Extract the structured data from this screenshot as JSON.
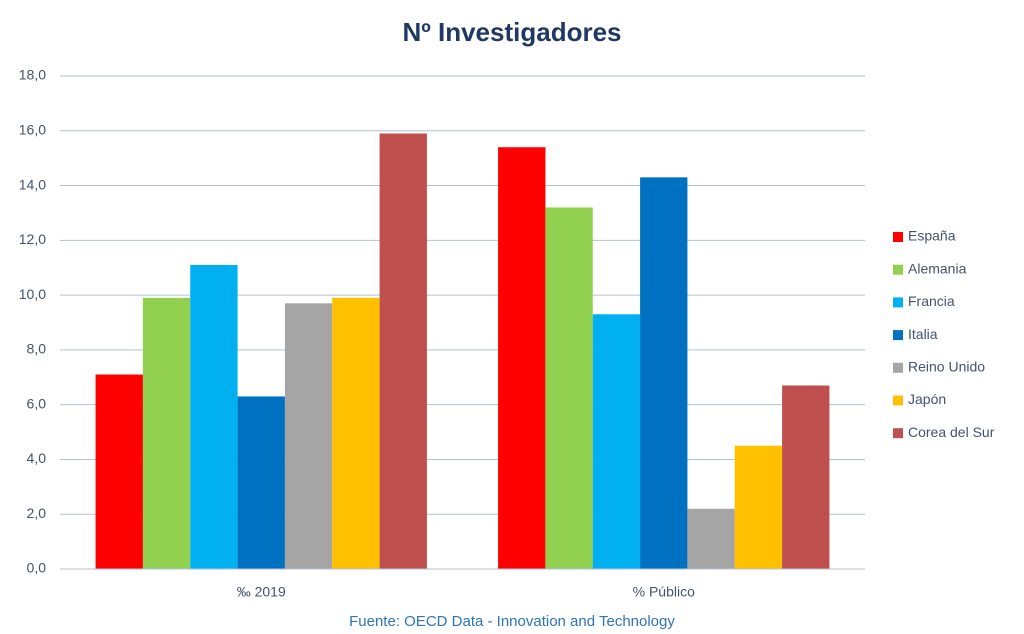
{
  "chart_data": {
    "type": "bar",
    "title": "Nº Investigadores",
    "source": "Fuente: OECD Data - Innovation and Technology",
    "categories": [
      "‰ 2019",
      "% Público"
    ],
    "series": [
      {
        "name": "España",
        "color": "#ff0000",
        "values": [
          7.1,
          15.4
        ]
      },
      {
        "name": "Alemania",
        "color": "#92d050",
        "values": [
          9.9,
          13.2
        ]
      },
      {
        "name": "Francia",
        "color": "#00b0f0",
        "values": [
          11.1,
          9.3
        ]
      },
      {
        "name": "Italia",
        "color": "#0070c0",
        "values": [
          6.3,
          14.3
        ]
      },
      {
        "name": "Reino Unido",
        "color": "#a5a5a5",
        "values": [
          9.7,
          2.2
        ]
      },
      {
        "name": "Japón",
        "color": "#ffc000",
        "values": [
          9.9,
          4.5
        ]
      },
      {
        "name": "Corea del Sur",
        "color": "#c0504d",
        "values": [
          15.9,
          6.7
        ]
      }
    ],
    "ylim": [
      0,
      18
    ],
    "yticks": [
      {
        "value": 0,
        "label": "0,0"
      },
      {
        "value": 2,
        "label": "2,0"
      },
      {
        "value": 4,
        "label": "4,0"
      },
      {
        "value": 6,
        "label": "6,0"
      },
      {
        "value": 8,
        "label": "8,0"
      },
      {
        "value": 10,
        "label": "10,0"
      },
      {
        "value": 12,
        "label": "12,0"
      },
      {
        "value": 14,
        "label": "14,0"
      },
      {
        "value": 16,
        "label": "16,0"
      },
      {
        "value": 18,
        "label": "18,0"
      }
    ],
    "grid": true,
    "legend": "right"
  }
}
